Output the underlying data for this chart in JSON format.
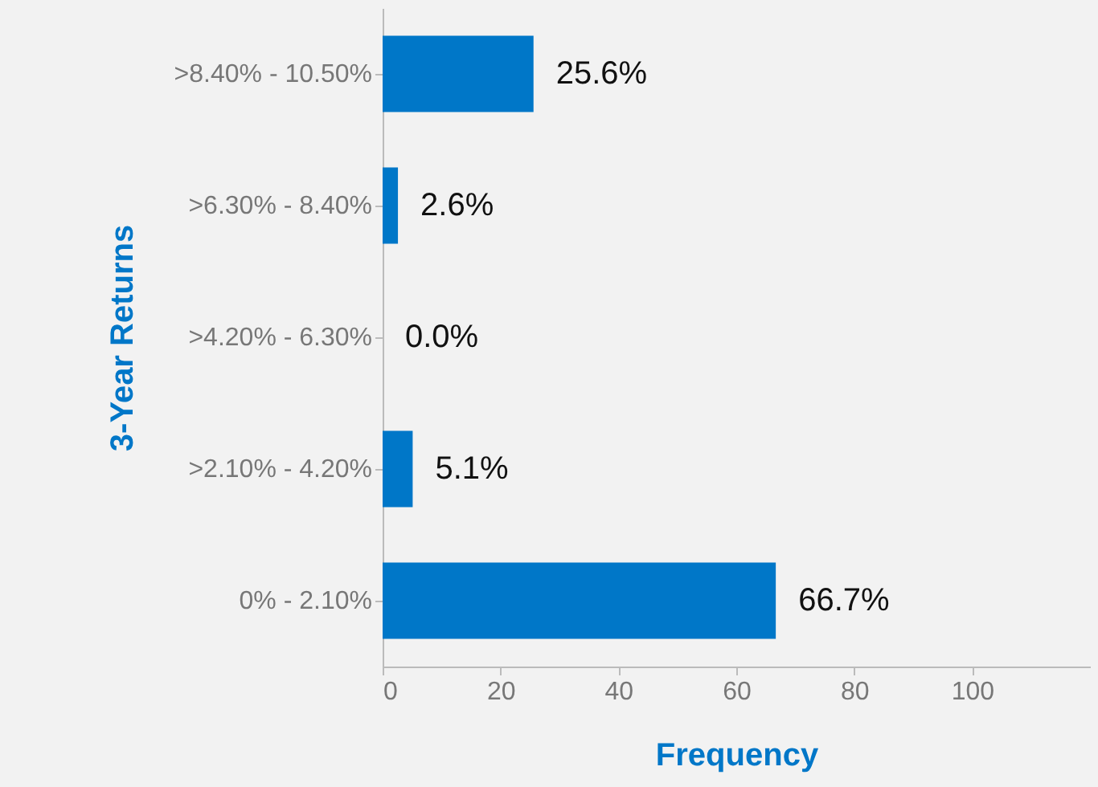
{
  "chart_data": {
    "type": "bar",
    "orientation": "horizontal",
    "xlabel": "Frequency",
    "ylabel": "3-Year Returns",
    "categories": [
      ">8.40% - 10.50%",
      ">6.30% - 8.40%",
      ">4.20% - 6.30%",
      ">2.10% - 4.20%",
      "0% - 2.10%"
    ],
    "values": [
      25.6,
      2.6,
      0.0,
      5.1,
      66.7
    ],
    "value_labels": [
      "25.6%",
      "2.6%",
      "0.0%",
      "5.1%",
      "66.7%"
    ],
    "color": "#0077c8",
    "xlim": [
      0,
      120
    ],
    "xticks": [
      0,
      20,
      40,
      60,
      80,
      100
    ],
    "grid": false
  }
}
